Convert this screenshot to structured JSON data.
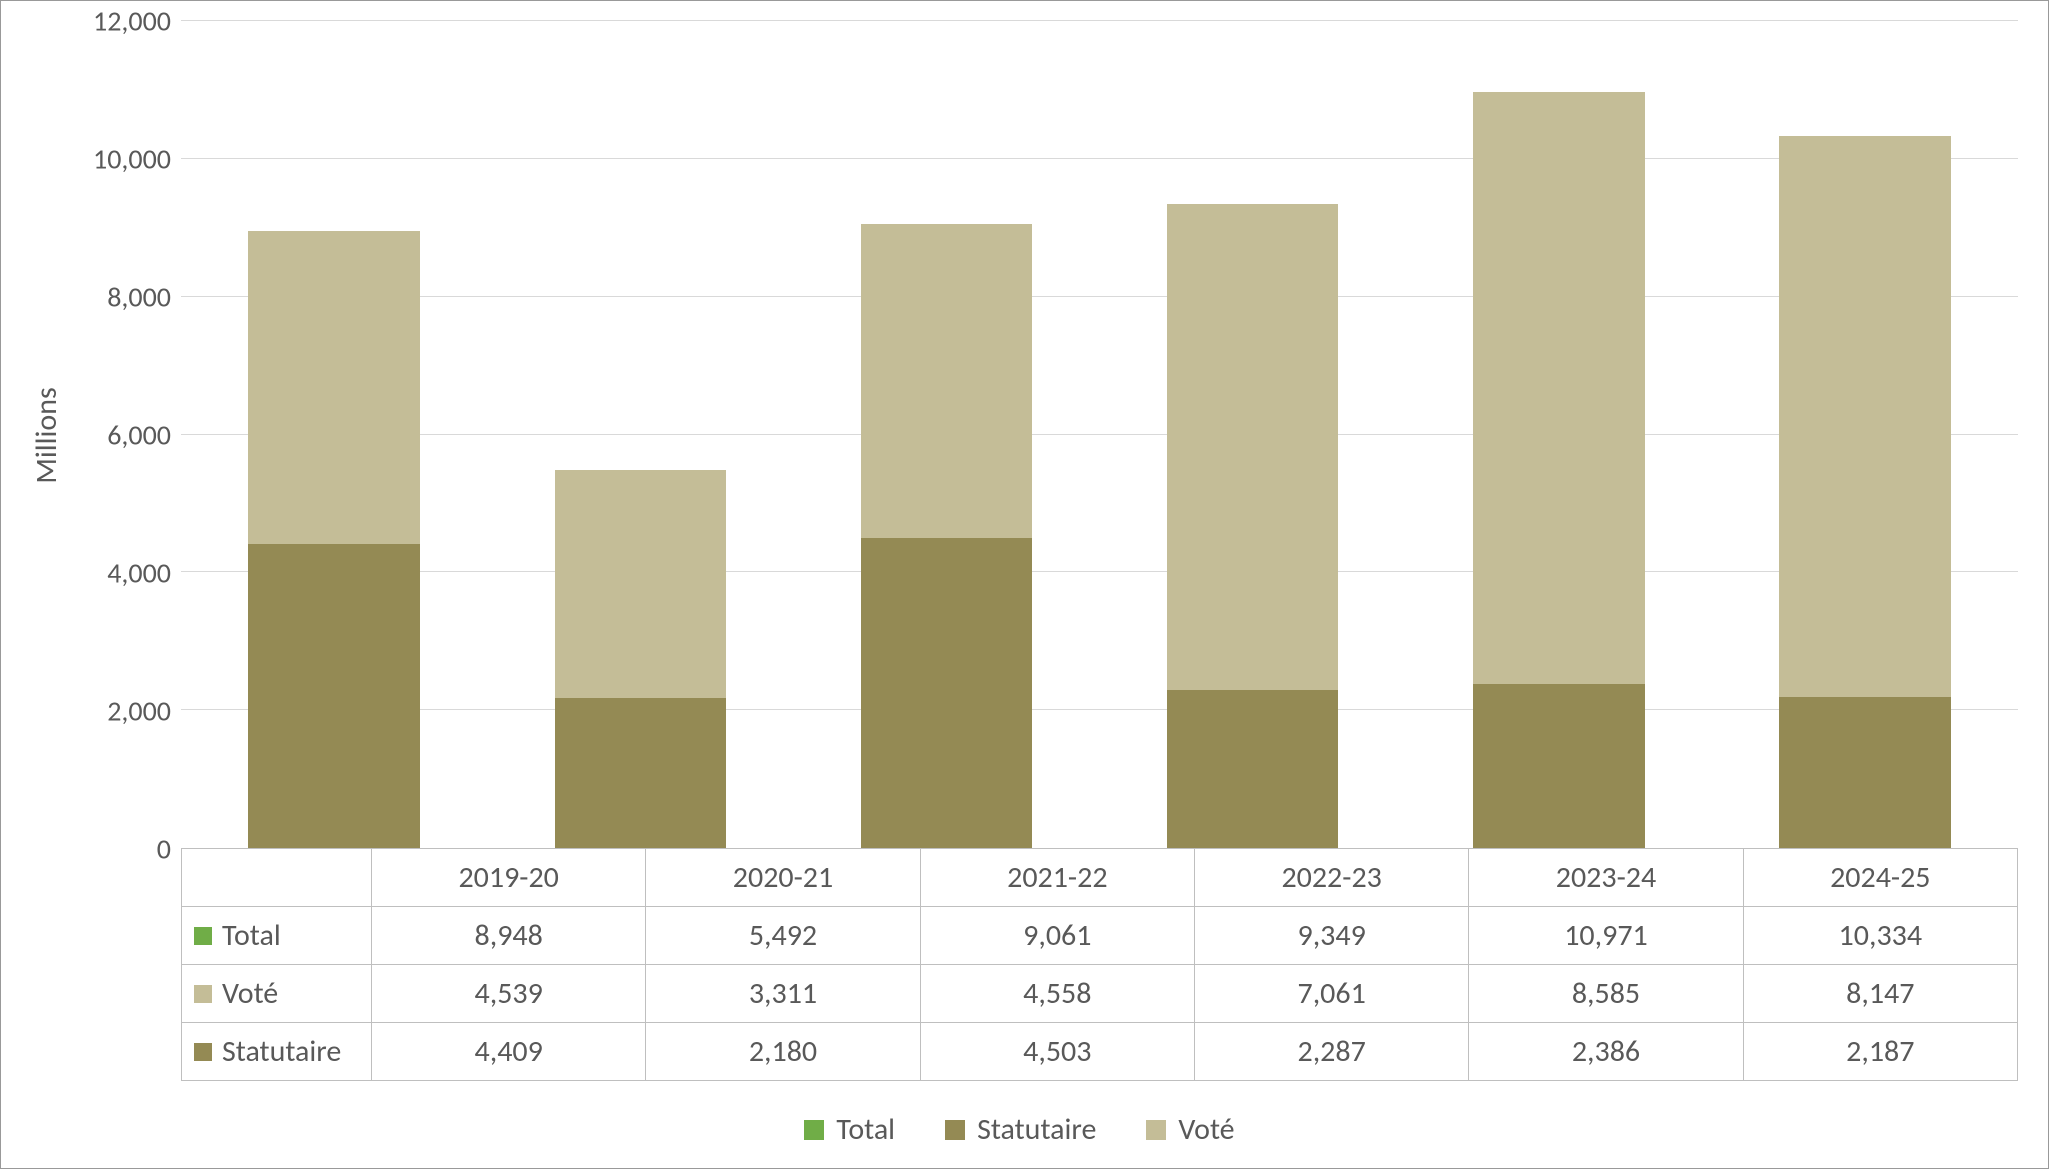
{
  "chart": {
    "type": "stacked-bar",
    "ylabel": "Millions",
    "label_fontsize": 30,
    "tick_fontsize": 28,
    "text_color": "#595959",
    "background_color": "#ffffff",
    "grid_color": "#d9d9d9",
    "border_color": "#bfbfbf",
    "ylim": [
      0,
      12000
    ],
    "ytick_step": 2000,
    "yticks": [
      "0",
      "2,000",
      "4,000",
      "6,000",
      "8,000",
      "10,000",
      "12,000"
    ],
    "bar_width": 0.56,
    "categories": [
      "2019-20",
      "2020-21",
      "2021-22",
      "2022-23",
      "2023-24",
      "2024-25"
    ],
    "series": {
      "total": {
        "label": "Total",
        "color": "#70ad47",
        "values": [
          8948,
          5492,
          9061,
          9349,
          10971,
          10334
        ],
        "stacked": false
      },
      "vote": {
        "label": "Voté",
        "color": "#c4bd97",
        "values": [
          4539,
          3311,
          4558,
          7061,
          8585,
          8147
        ],
        "stacked": true
      },
      "statutaire": {
        "label": "Statutaire",
        "color": "#948a54",
        "values": [
          4409,
          2180,
          4503,
          2287,
          2386,
          2187
        ],
        "stacked": true
      }
    },
    "stack_order": [
      "statutaire",
      "vote"
    ],
    "table_row_order": [
      "total",
      "vote",
      "statutaire"
    ],
    "legend_order": [
      "total",
      "statutaire",
      "vote"
    ]
  }
}
